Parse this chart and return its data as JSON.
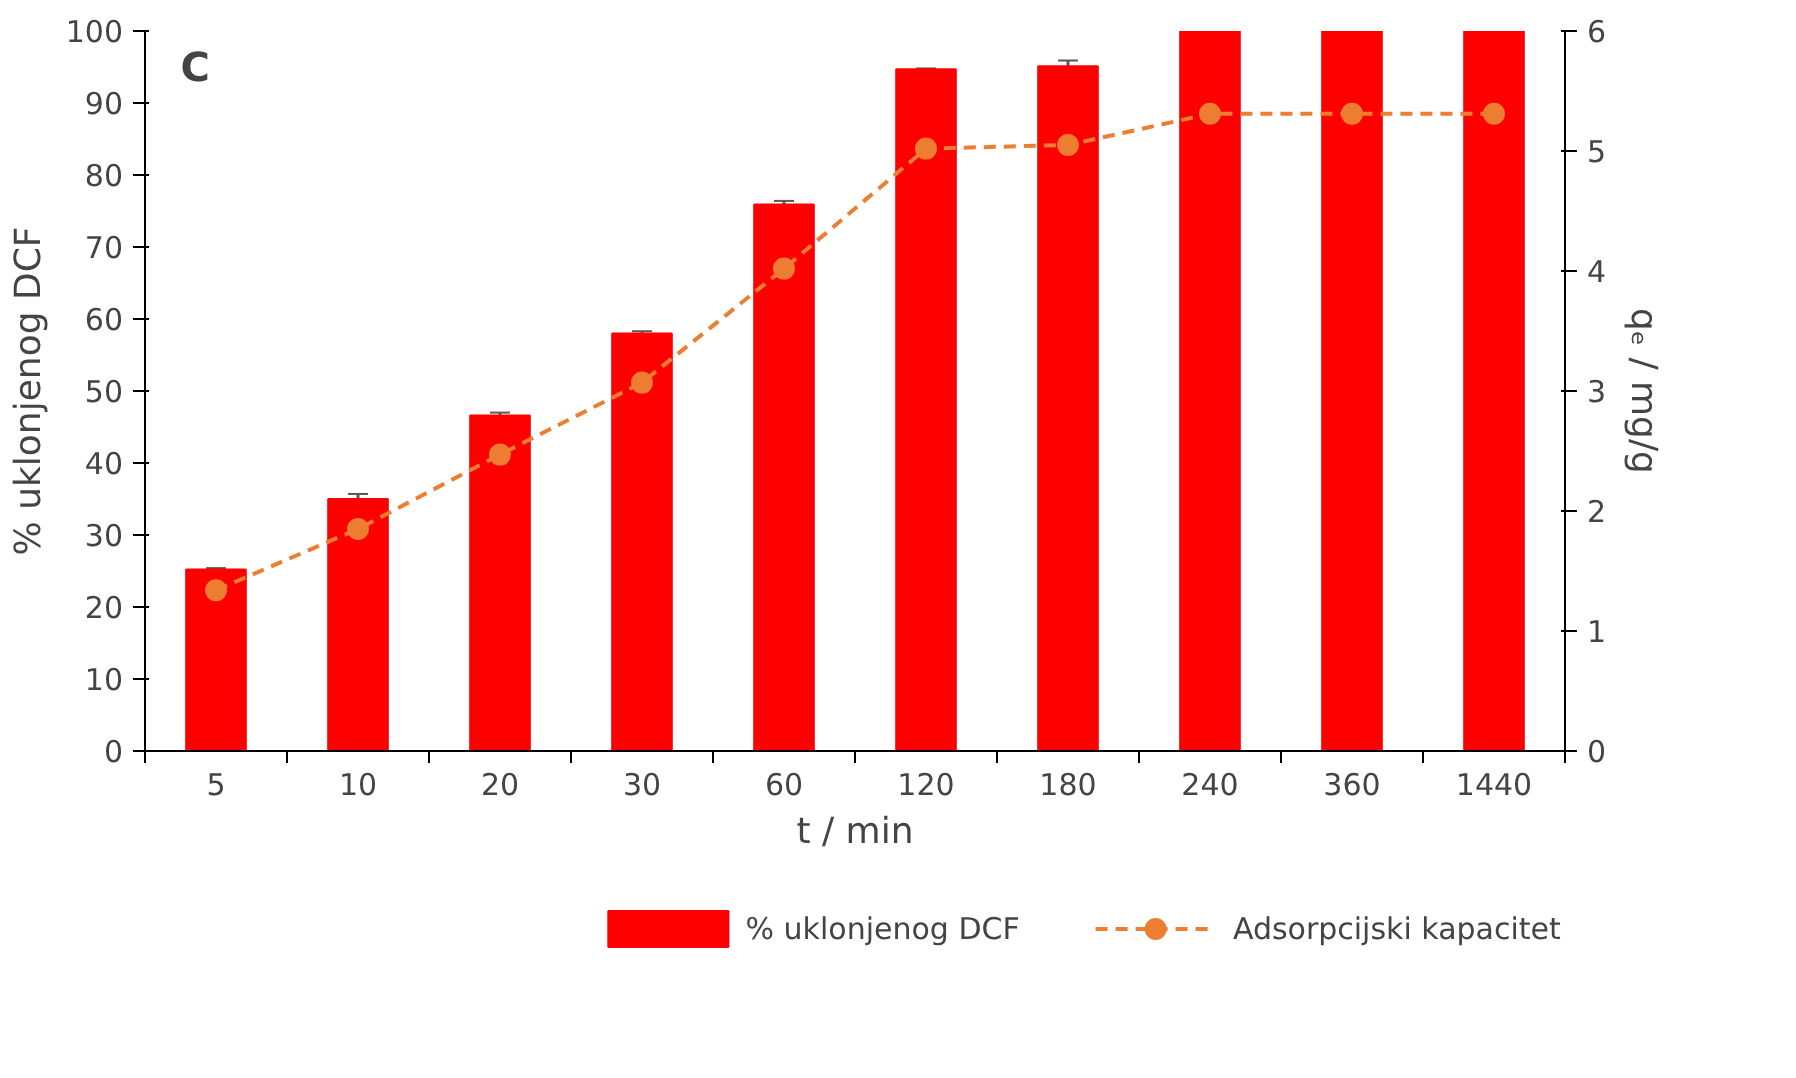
{
  "chart_data": {
    "type": "bar",
    "xlabel": "t / min",
    "ylabel": "% uklonjenog DCF",
    "y2label": "qₑ / mg/g",
    "annotations": [
      "C"
    ],
    "categories": [
      "5",
      "10",
      "20",
      "30",
      "60",
      "120",
      "180",
      "240",
      "360",
      "1440"
    ],
    "series": [
      {
        "name": "% uklonjenog DCF",
        "color": "#ff0000",
        "values": [
          25.2,
          35.0,
          46.6,
          58.0,
          75.9,
          94.7,
          95.1,
          100,
          100,
          100
        ],
        "errors": [
          0.2,
          0.7,
          0.4,
          0.3,
          0.5,
          0.1,
          0.8,
          0.1,
          0.1,
          0.1
        ]
      },
      {
        "name": "Adsorpcijski kapacitet",
        "type": "line",
        "axis": "y2",
        "color": "#ed7d31",
        "marker": "circle",
        "line_style": "dashed",
        "values": [
          1.34,
          1.85,
          2.47,
          3.07,
          4.02,
          5.02,
          5.05,
          5.31,
          5.31,
          5.31
        ]
      }
    ],
    "ylim": [
      0,
      100
    ],
    "yticks": [
      0,
      10,
      20,
      30,
      40,
      50,
      60,
      70,
      80,
      90,
      100
    ],
    "y2lim": [
      0,
      6
    ],
    "y2ticks": [
      0,
      1,
      2,
      3,
      4,
      5,
      6
    ],
    "grid": false,
    "legend": "bottom"
  }
}
